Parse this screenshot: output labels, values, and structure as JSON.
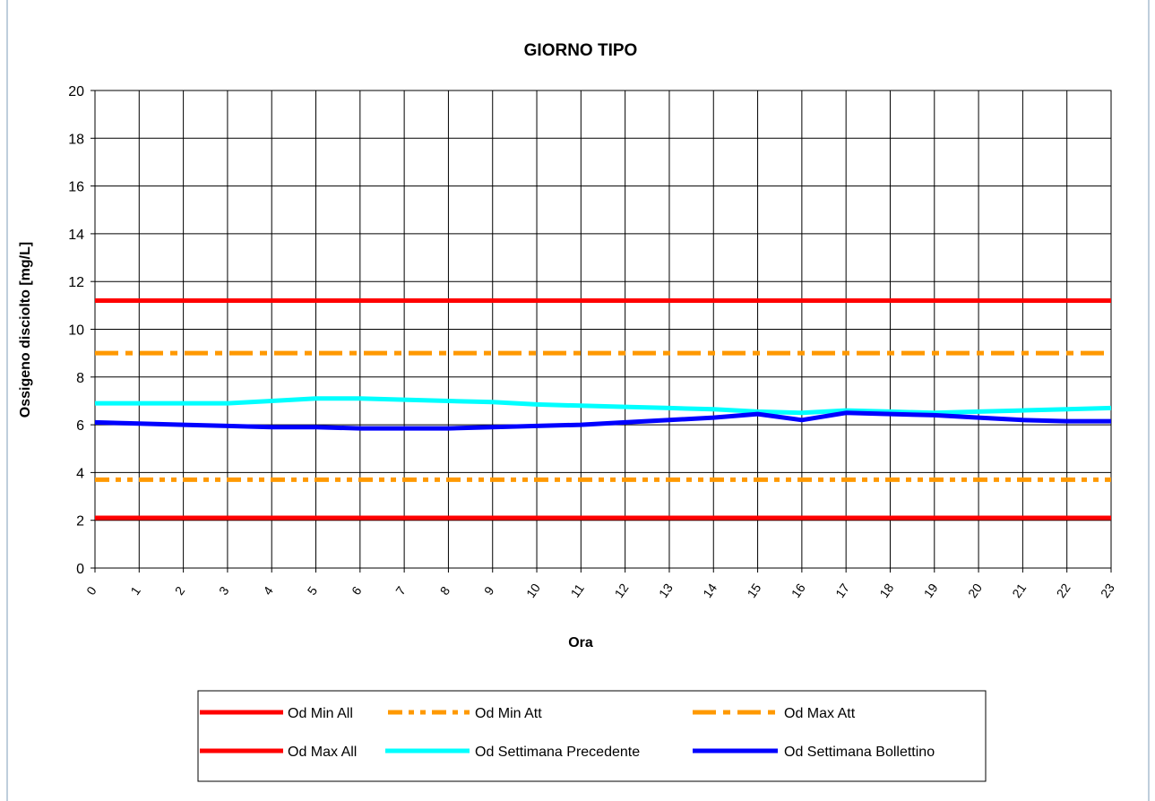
{
  "chart_data": {
    "type": "line",
    "title": "GIORNO TIPO",
    "xlabel": "Ora",
    "ylabel": "Ossigeno disciolto [mg/L]",
    "ylim": [
      0,
      20
    ],
    "yticks": [
      0,
      2,
      4,
      6,
      8,
      10,
      12,
      14,
      16,
      18,
      20
    ],
    "x": [
      "0",
      "1",
      "2",
      "3",
      "4",
      "5",
      "6",
      "7",
      "8",
      "9",
      "10",
      "11",
      "12",
      "13",
      "14",
      "15",
      "16",
      "17",
      "18",
      "19",
      "20",
      "21",
      "22",
      "23"
    ],
    "grid": true,
    "legend_position": "bottom",
    "series": [
      {
        "name": "Od Min All",
        "color": "#ff0000",
        "style": "solid",
        "values": [
          2.1,
          2.1,
          2.1,
          2.1,
          2.1,
          2.1,
          2.1,
          2.1,
          2.1,
          2.1,
          2.1,
          2.1,
          2.1,
          2.1,
          2.1,
          2.1,
          2.1,
          2.1,
          2.1,
          2.1,
          2.1,
          2.1,
          2.1,
          2.1
        ]
      },
      {
        "name": "Od Min Att",
        "color": "#ff9900",
        "style": "dash-dot-dot",
        "values": [
          3.7,
          3.7,
          3.7,
          3.7,
          3.7,
          3.7,
          3.7,
          3.7,
          3.7,
          3.7,
          3.7,
          3.7,
          3.7,
          3.7,
          3.7,
          3.7,
          3.7,
          3.7,
          3.7,
          3.7,
          3.7,
          3.7,
          3.7,
          3.7
        ]
      },
      {
        "name": "Od Max Att",
        "color": "#ff9900",
        "style": "dash-dot",
        "values": [
          9.0,
          9.0,
          9.0,
          9.0,
          9.0,
          9.0,
          9.0,
          9.0,
          9.0,
          9.0,
          9.0,
          9.0,
          9.0,
          9.0,
          9.0,
          9.0,
          9.0,
          9.0,
          9.0,
          9.0,
          9.0,
          9.0,
          9.0,
          9.0
        ]
      },
      {
        "name": "Od Max All",
        "color": "#ff0000",
        "style": "solid",
        "values": [
          11.2,
          11.2,
          11.2,
          11.2,
          11.2,
          11.2,
          11.2,
          11.2,
          11.2,
          11.2,
          11.2,
          11.2,
          11.2,
          11.2,
          11.2,
          11.2,
          11.2,
          11.2,
          11.2,
          11.2,
          11.2,
          11.2,
          11.2,
          11.2
        ]
      },
      {
        "name": "Od Settimana Precedente",
        "color": "#00ffff",
        "style": "solid",
        "values": [
          6.9,
          6.9,
          6.9,
          6.9,
          7.0,
          7.1,
          7.1,
          7.05,
          7.0,
          6.95,
          6.85,
          6.8,
          6.75,
          6.7,
          6.65,
          6.55,
          6.5,
          6.6,
          6.55,
          6.5,
          6.55,
          6.6,
          6.65,
          6.7
        ]
      },
      {
        "name": "Od Settimana Bollettino",
        "color": "#0000ff",
        "style": "solid",
        "values": [
          6.1,
          6.05,
          6.0,
          5.95,
          5.9,
          5.9,
          5.85,
          5.85,
          5.85,
          5.9,
          5.95,
          6.0,
          6.1,
          6.2,
          6.3,
          6.45,
          6.2,
          6.5,
          6.45,
          6.4,
          6.3,
          6.2,
          6.15,
          6.15
        ]
      }
    ]
  }
}
